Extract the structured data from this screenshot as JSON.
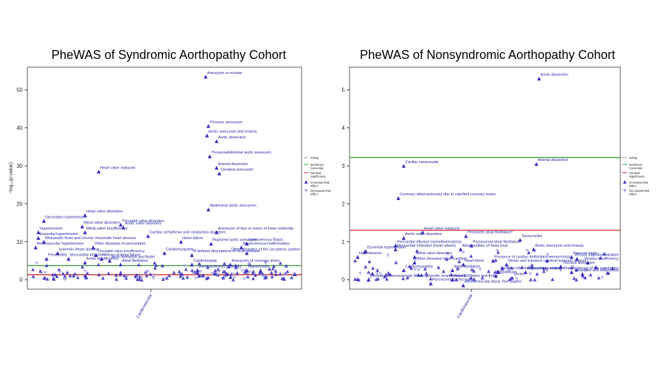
{
  "chart_data": [
    {
      "type": "scatter",
      "title": "PheWAS of Syndromic Aorthopathy Cohort",
      "ylabel": "−log₁₀(p-value)",
      "xlabel": "",
      "x_category": "Cardiovascular",
      "ylim": [
        -2.5,
        56
      ],
      "yticks": [
        0,
        10,
        20,
        30,
        40,
        50
      ],
      "thresholds": [
        {
          "name": "Bonferroni Correction",
          "value": 3.7,
          "color": "#2e9a2e"
        },
        {
          "name": "Nominal Significance",
          "value": 1.3,
          "color": "#d02020"
        }
      ],
      "legend": {
        "placement": "right",
        "entries": [
          "Infinity",
          "Bonferroni Correction",
          "Nominal Significance",
          "Increased Risk Effect",
          "Decreased Risk Effect"
        ]
      },
      "labeled_points": [
        {
          "label": "Aneurysm or ectasia",
          "x": 0.65,
          "y": 53.5
        },
        {
          "label": "Thoracic aneurysm",
          "x": 0.66,
          "y": 40.5
        },
        {
          "label": "Aortic aneurysm and ectasia",
          "x": 0.655,
          "y": 38
        },
        {
          "label": "Aortic dissection",
          "x": 0.69,
          "y": 36.5
        },
        {
          "label": "Thoracoabdominal aortic aneurysm",
          "x": 0.665,
          "y": 32.5
        },
        {
          "label": "Arterial dissection",
          "x": 0.69,
          "y": 29.5
        },
        {
          "label": "Cerebral aneurysm",
          "x": 0.7,
          "y": 28
        },
        {
          "label": "Heart valve replaced",
          "x": 0.26,
          "y": 28.5
        },
        {
          "label": "Abdominal aortic aneurysm",
          "x": 0.66,
          "y": 18.5
        },
        {
          "label": "Heart valve disorders",
          "x": 0.21,
          "y": 17
        },
        {
          "label": "Secondary hypertension",
          "x": 0.06,
          "y": 15.5
        },
        {
          "label": "Tricuspid valve disorders",
          "x": 0.34,
          "y": 14.5
        },
        {
          "label": "Mitral valve disorders",
          "x": 0.2,
          "y": 14
        },
        {
          "label": "Aortic valve disorders",
          "x": 0.35,
          "y": 13.8
        },
        {
          "label": "Hypertension",
          "x": 0.04,
          "y": 12.5
        },
        {
          "label": "Mitral valve insufficiency",
          "x": 0.21,
          "y": 12.5
        },
        {
          "label": "Essential hypertension",
          "x": 0.04,
          "y": 11
        },
        {
          "label": "Cardiac arrhythmia and conduction disorders",
          "x": 0.44,
          "y": 11.5
        },
        {
          "label": "Aneurysm of iliac or artery of lower extremity",
          "x": 0.69,
          "y": 12.5
        },
        {
          "label": "Rheumatic fever and chronic rheumatic heart disease",
          "x": 0.06,
          "y": 10
        },
        {
          "label": "Heart failure",
          "x": 0.56,
          "y": 10
        },
        {
          "label": "Ruptured aortic aneurysm",
          "x": 0.67,
          "y": 9.5
        },
        {
          "label": "Arteriovenous fistula",
          "x": 0.8,
          "y": 9.5
        },
        {
          "label": "Renovascular hypertension",
          "x": 0.03,
          "y": 8.5
        },
        {
          "label": "Other diseases of pericardium",
          "x": 0.24,
          "y": 8.5
        },
        {
          "label": "Arteriovenous malformation",
          "x": 0.78,
          "y": 8.5
        },
        {
          "label": "Ischemic Heart disease",
          "x": 0.11,
          "y": 7
        },
        {
          "label": "Cardiomyopathy",
          "x": 0.5,
          "y": 7
        },
        {
          "label": "Ill-defined descriptions of heart disease",
          "x": 0.6,
          "y": 6.5
        },
        {
          "label": "Tricuspid valve insufficiency",
          "x": 0.25,
          "y": 6.5
        },
        {
          "label": "Other disorders of the circulatory system",
          "x": 0.8,
          "y": 7
        },
        {
          "label": "Pericarditis",
          "x": 0.07,
          "y": 5.5
        },
        {
          "label": "Myocardial infarction",
          "x": 0.15,
          "y": 5.5
        },
        {
          "label": "History of heart failure",
          "x": 0.27,
          "y": 5.5
        },
        {
          "label": "Atrial fibrillation and flutter",
          "x": 0.3,
          "y": 5
        },
        {
          "label": "Aortic insufficiency",
          "x": 0.21,
          "y": 4.5
        },
        {
          "label": "Atrial fibrillation",
          "x": 0.34,
          "y": 4
        },
        {
          "label": "Cardiomegaly",
          "x": 0.6,
          "y": 4
        },
        {
          "label": "Atherosclerosis [ASCVD]",
          "x": 0.62,
          "y": 2.5
        },
        {
          "label": "Aneurysm of coronary artery",
          "x": 0.74,
          "y": 4
        },
        {
          "label": "Hypotension",
          "x": 0.8,
          "y": 2.5
        }
      ]
    },
    {
      "type": "scatter",
      "title": "PheWAS of Nonsyndromic Aorthopathy Cohort",
      "ylabel": "",
      "xlabel": "",
      "x_category": "Cardiovascular",
      "ylim": [
        -0.25,
        5.6
      ],
      "yticks": [
        0,
        1,
        2,
        3,
        4,
        5
      ],
      "thresholds": [
        {
          "name": "Bonferroni Correction",
          "value": 3.22,
          "color": "#2e9a2e"
        },
        {
          "name": "Nominal Significance",
          "value": 1.3,
          "color": "#d02020"
        }
      ],
      "legend": {
        "placement": "right",
        "entries": [
          "Infinity",
          "Bonferroni Correction",
          "Nominal Significance",
          "Increased Risk Effect",
          "Decreased Risk Effect"
        ]
      },
      "labeled_points": [
        {
          "label": "Aortic dissection",
          "x": 0.7,
          "y": 5.3
        },
        {
          "label": "Cardiac tamponade",
          "x": 0.2,
          "y": 3.0
        },
        {
          "label": "Arterial dissection",
          "x": 0.69,
          "y": 3.05
        },
        {
          "label": "Coronary atherosclerosis due to calcified coronary lesion",
          "x": 0.18,
          "y": 2.15
        },
        {
          "label": "Heart valve replaced",
          "x": 0.27,
          "y": 1.25
        },
        {
          "label": "Persistent atrial fibrillation*",
          "x": 0.43,
          "y": 1.15
        },
        {
          "label": "Aortic valve disorders",
          "x": 0.2,
          "y": 1.1
        },
        {
          "label": "Tachycardia",
          "x": 0.63,
          "y": 1.05
        },
        {
          "label": "Pericardial effusion (noninflammatory)",
          "x": 0.17,
          "y": 0.9
        },
        {
          "label": "Paroxysmal atrial fibrillation*",
          "x": 0.45,
          "y": 0.9
        },
        {
          "label": "Myocardial infarction (heart attack)",
          "x": 0.17,
          "y": 0.8
        },
        {
          "label": "Abnormalities of heart beat",
          "x": 0.41,
          "y": 0.8
        },
        {
          "label": "Essential hypertension",
          "x": 0.06,
          "y": 0.75
        },
        {
          "label": "Aortic aneurysm and ectasia",
          "x": 0.68,
          "y": 0.8
        },
        {
          "label": "Hypertension",
          "x": 0.03,
          "y": 0.6
        },
        {
          "label": "Mitral valve disorders",
          "x": 0.24,
          "y": 0.6
        },
        {
          "label": "Varicose veins",
          "x": 0.82,
          "y": 0.6
        },
        {
          "label": "Venous thromboembolism",
          "x": 0.84,
          "y": 0.55
        },
        {
          "label": "Presence of cardiac defibrillator",
          "x": 0.53,
          "y": 0.5
        },
        {
          "label": "Hemorrhoids",
          "x": 0.73,
          "y": 0.5
        },
        {
          "label": "Other diseases of pericardium",
          "x": 0.24,
          "y": 0.45
        },
        {
          "label": "Venous insufficiency",
          "x": 0.88,
          "y": 0.45
        },
        {
          "label": "Stroke and transient cerebral ischemic attacks",
          "x": 0.58,
          "y": 0.4
        },
        {
          "label": "Heart block",
          "x": 0.42,
          "y": 0.4
        },
        {
          "label": "Thoracic aneurysm",
          "x": 0.78,
          "y": 0.35
        },
        {
          "label": "Cardiomyopathy",
          "x": 0.2,
          "y": 0.25
        },
        {
          "label": "Atrial fibrillation",
          "x": 0.38,
          "y": 0.25
        },
        {
          "label": "Cerebral infarction [Ischemic stroke]",
          "x": 0.55,
          "y": 0.2
        },
        {
          "label": "Aneurysm or ectasia",
          "x": 0.65,
          "y": 0.2
        },
        {
          "label": "Atherosclerosis of the extremities",
          "x": 0.82,
          "y": 0.2
        },
        {
          "label": "Embolism and thrombosis",
          "x": 0.86,
          "y": 0.15
        },
        {
          "label": "Palpitations",
          "x": 0.54,
          "y": 0.1
        },
        {
          "label": "Stroke",
          "x": 0.6,
          "y": 0.05
        },
        {
          "label": "Coronary atherosclerosis [Atherosclerotic heart disease]",
          "x": 0.07,
          "y": 0.0
        },
        {
          "label": "Atrial fibrillation and flutter",
          "x": 0.38,
          "y": 0.0
        },
        {
          "label": "Paroxysmal tachycardia",
          "x": 0.3,
          "y": -0.1
        },
        {
          "label": "Atrioventricular block, first degree",
          "x": 0.42,
          "y": -0.15
        }
      ]
    }
  ]
}
